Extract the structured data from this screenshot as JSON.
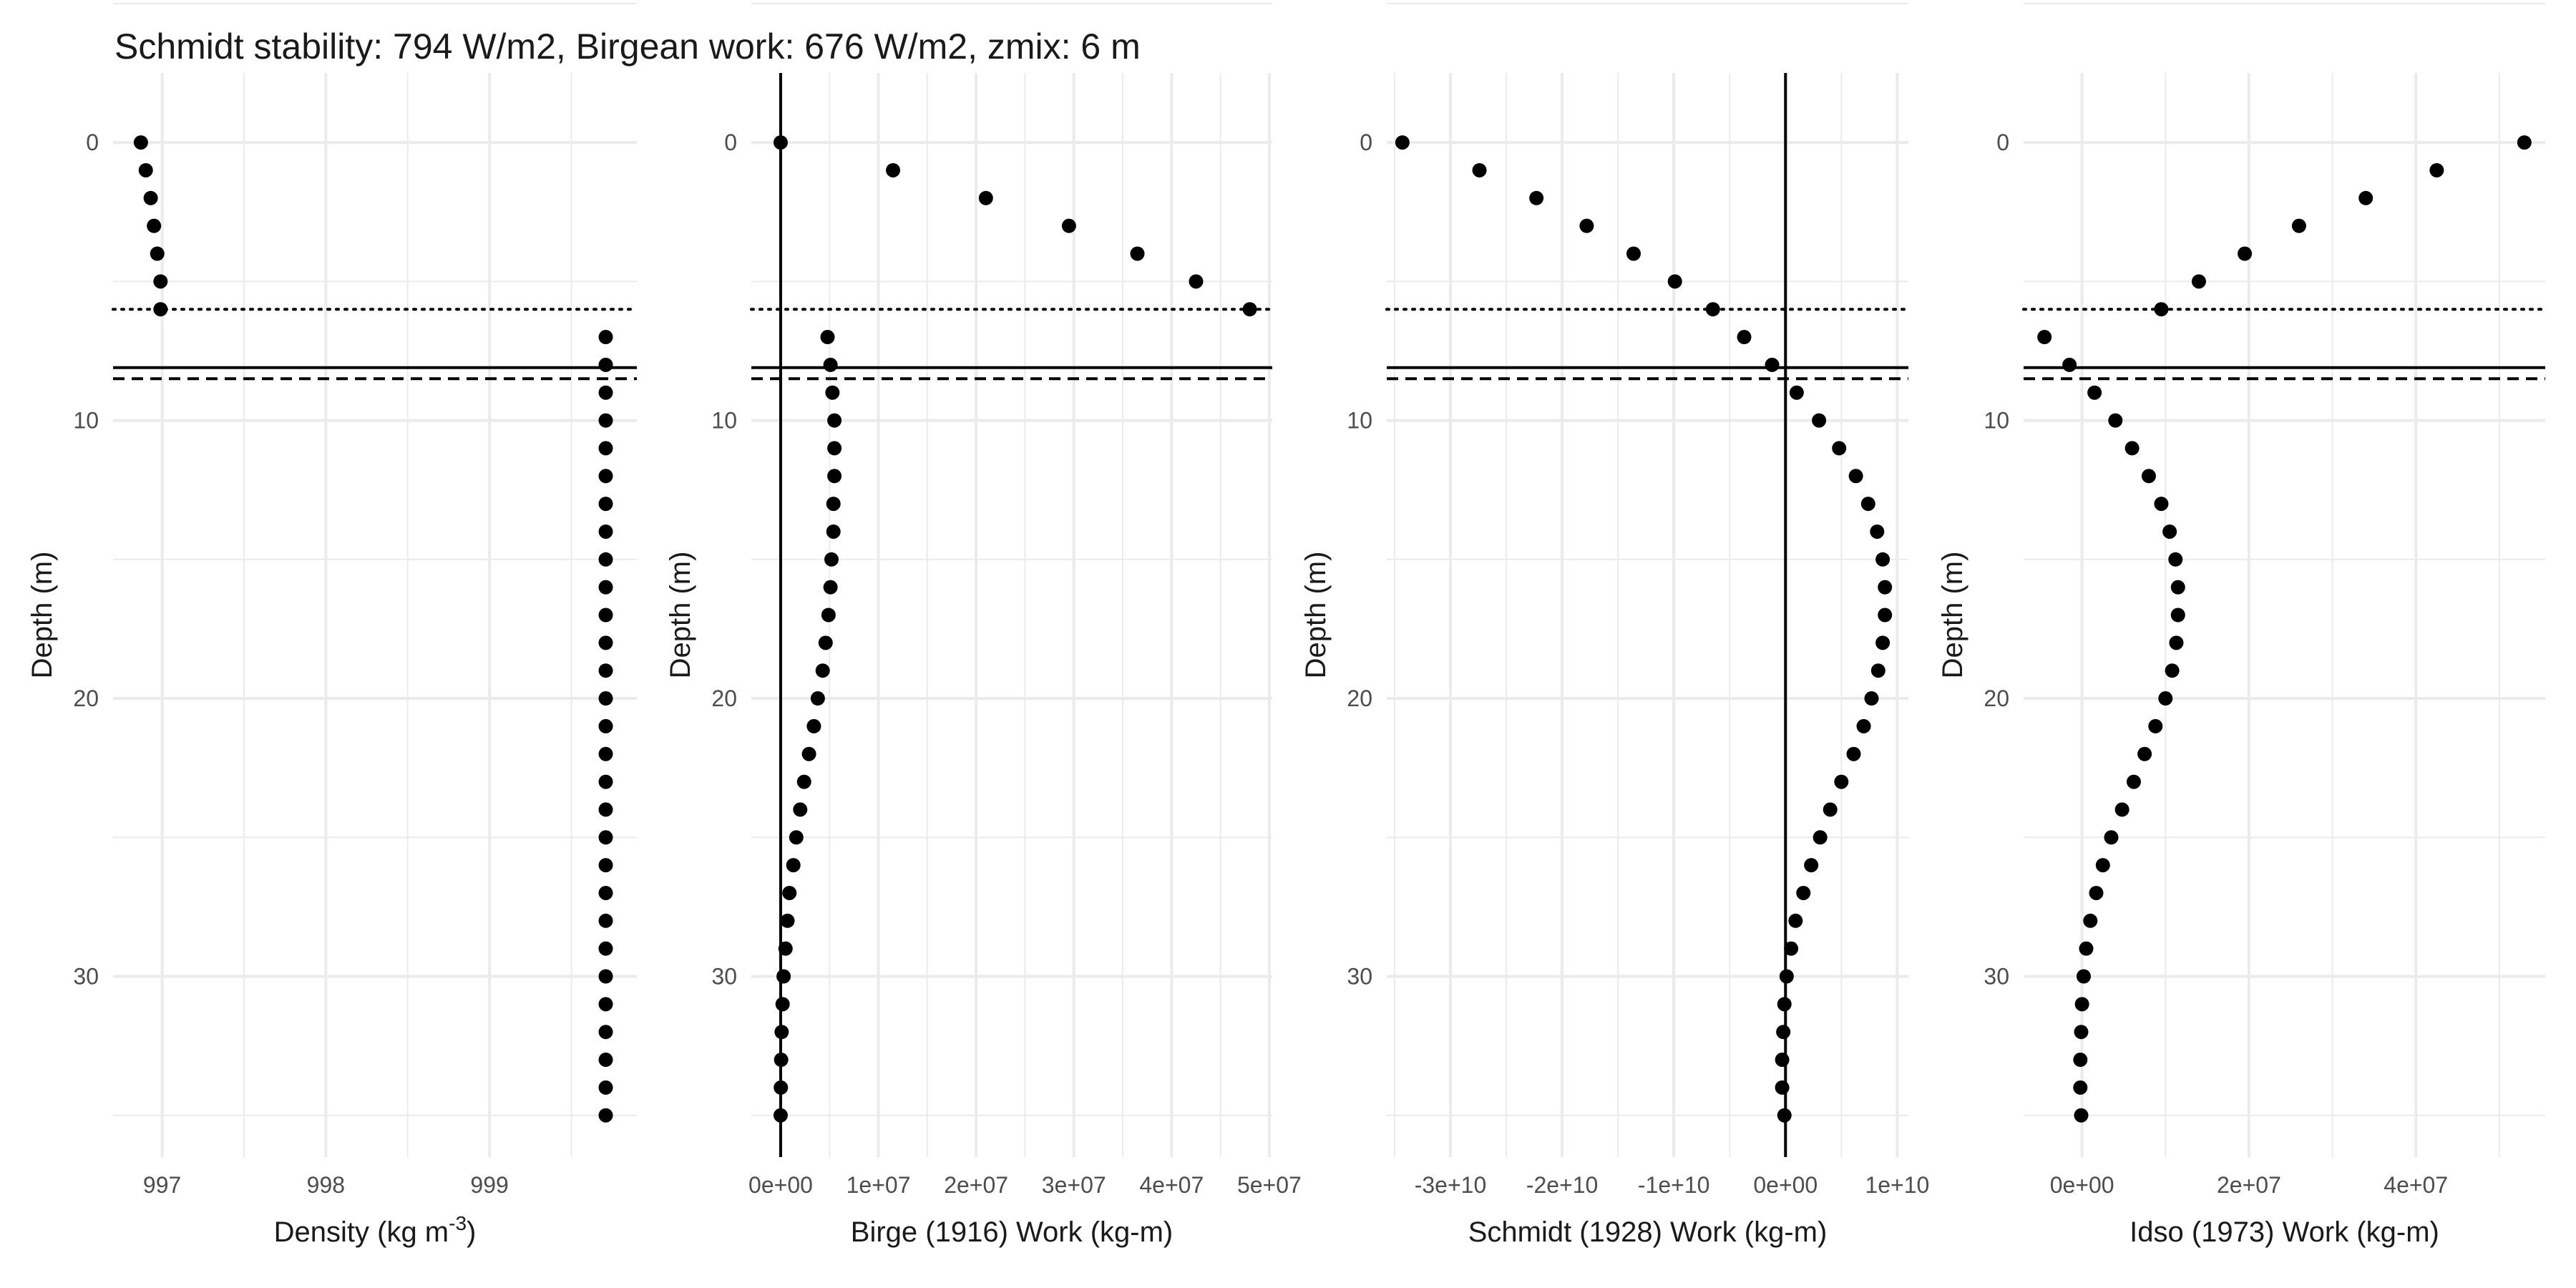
{
  "figure": {
    "title": "Schmidt stability: 794 W/m2, Birgean work: 676 W/m2, zmix: 6 m"
  },
  "colors": {
    "points": "#000000",
    "grid": "#ebebeb",
    "reference_lines": "#000000"
  },
  "chart_data": [
    {
      "type": "scatter",
      "panel": "density",
      "title": "",
      "xlabel_main": "Density (kg m",
      "xlabel_sup": "-3",
      "xlabel_end": ")",
      "ylabel": "Depth (m)",
      "xlim": [
        996.7,
        999.9
      ],
      "ylim": [
        36.5,
        -2.5
      ],
      "xticks": [
        997,
        998,
        999
      ],
      "xtick_labels": [
        "997",
        "998",
        "999"
      ],
      "yticks": [
        0,
        10,
        20,
        30
      ],
      "ytick_labels": [
        "0",
        "10",
        "20",
        "30"
      ],
      "grid": true,
      "zero_line": false,
      "hlines": [
        {
          "y": 6,
          "style": "dotted"
        },
        {
          "y": 8.1,
          "style": "solid"
        },
        {
          "y": 8.5,
          "style": "dashed"
        }
      ],
      "x": [
        996.87,
        996.9,
        996.93,
        996.95,
        996.97,
        996.99,
        996.99,
        999.71,
        999.71,
        999.71,
        999.71,
        999.71,
        999.71,
        999.71,
        999.71,
        999.71,
        999.71,
        999.71,
        999.71,
        999.71,
        999.71,
        999.71,
        999.71,
        999.71,
        999.71,
        999.71,
        999.71,
        999.71,
        999.71,
        999.71,
        999.71,
        999.71,
        999.71,
        999.71,
        999.71,
        999.71
      ],
      "y": [
        0,
        1,
        2,
        3,
        4,
        5,
        6,
        7,
        8,
        9,
        10,
        11,
        12,
        13,
        14,
        15,
        16,
        17,
        18,
        19,
        20,
        21,
        22,
        23,
        24,
        25,
        26,
        27,
        28,
        29,
        30,
        31,
        32,
        33,
        34,
        35
      ]
    },
    {
      "type": "scatter",
      "panel": "birge",
      "title": "",
      "xlabel": "Birge (1916) Work (kg-m)",
      "ylabel": "Depth (m)",
      "xlim": [
        -3000000,
        50300000
      ],
      "ylim": [
        36.5,
        -2.5
      ],
      "xticks": [
        0,
        10000000,
        20000000,
        30000000,
        40000000,
        50000000
      ],
      "xtick_labels": [
        "0e+00",
        "1e+07",
        "2e+07",
        "3e+07",
        "4e+07",
        "5e+07"
      ],
      "yticks": [
        0,
        10,
        20,
        30
      ],
      "ytick_labels": [
        "0",
        "10",
        "20",
        "30"
      ],
      "grid": true,
      "zero_line": true,
      "hlines": [
        {
          "y": 6,
          "style": "dotted"
        },
        {
          "y": 8.1,
          "style": "solid"
        },
        {
          "y": 8.5,
          "style": "dashed"
        }
      ],
      "x": [
        0,
        11500000,
        21000000,
        29500000,
        36500000,
        42500000,
        48000000,
        4800000,
        5100000,
        5300000,
        5500000,
        5500000,
        5500000,
        5400000,
        5400000,
        5200000,
        5100000,
        4900000,
        4600000,
        4300000,
        3800000,
        3400000,
        2900000,
        2400000,
        2000000,
        1600000,
        1300000,
        900000,
        700000,
        500000,
        300000,
        200000,
        100000,
        50000,
        20000,
        0
      ],
      "y": [
        0,
        1,
        2,
        3,
        4,
        5,
        6,
        7,
        8,
        9,
        10,
        11,
        12,
        13,
        14,
        15,
        16,
        17,
        18,
        19,
        20,
        21,
        22,
        23,
        24,
        25,
        26,
        27,
        28,
        29,
        30,
        31,
        32,
        33,
        34,
        35
      ]
    },
    {
      "type": "scatter",
      "panel": "schmidt",
      "title": "",
      "xlabel": "Schmidt (1928) Work (kg-m)",
      "ylabel": "Depth (m)",
      "xlim": [
        -35700000000,
        11000000000
      ],
      "ylim": [
        36.5,
        -2.5
      ],
      "xticks": [
        -30000000000,
        -20000000000,
        -10000000000,
        0,
        10000000000
      ],
      "xtick_labels": [
        "-3e+10",
        "-2e+10",
        "-1e+10",
        "0e+00",
        "1e+10"
      ],
      "yticks": [
        0,
        10,
        20,
        30
      ],
      "ytick_labels": [
        "0",
        "10",
        "20",
        "30"
      ],
      "grid": true,
      "zero_line": true,
      "hlines": [
        {
          "y": 6,
          "style": "dotted"
        },
        {
          "y": 8.1,
          "style": "solid"
        },
        {
          "y": 8.5,
          "style": "dashed"
        }
      ],
      "x": [
        -34300000000,
        -27400000000,
        -22300000000,
        -17800000000,
        -13600000000,
        -9900000000,
        -6500000000,
        -3700000000,
        -1200000000,
        1000000000,
        3000000000,
        4800000000,
        6300000000,
        7400000000,
        8200000000,
        8700000000,
        8900000000,
        8900000000,
        8700000000,
        8300000000,
        7700000000,
        7000000000,
        6100000000,
        5000000000,
        4000000000,
        3100000000,
        2300000000,
        1600000000,
        900000000,
        500000000,
        100000000,
        -100000000,
        -200000000,
        -300000000,
        -300000000,
        -100000000
      ],
      "y": [
        0,
        1,
        2,
        3,
        4,
        5,
        6,
        7,
        8,
        9,
        10,
        11,
        12,
        13,
        14,
        15,
        16,
        17,
        18,
        19,
        20,
        21,
        22,
        23,
        24,
        25,
        26,
        27,
        28,
        29,
        30,
        31,
        32,
        33,
        34,
        35
      ]
    },
    {
      "type": "scatter",
      "panel": "idso",
      "title": "",
      "xlabel": "Idso (1973) Work (kg-m)",
      "ylabel": "Depth (m)",
      "xlim": [
        -7000000,
        55500000
      ],
      "ylim": [
        36.5,
        -2.5
      ],
      "xticks": [
        0,
        20000000,
        40000000
      ],
      "xtick_labels": [
        "0e+00",
        "2e+07",
        "4e+07"
      ],
      "yticks": [
        0,
        10,
        20,
        30
      ],
      "ytick_labels": [
        "0",
        "10",
        "20",
        "30"
      ],
      "grid": true,
      "zero_line": false,
      "hlines": [
        {
          "y": 6,
          "style": "dotted"
        },
        {
          "y": 8.1,
          "style": "solid"
        },
        {
          "y": 8.5,
          "style": "dashed"
        }
      ],
      "x": [
        53000000,
        42500000,
        34000000,
        26000000,
        19500000,
        14000000,
        9500000,
        -4500000,
        -1500000,
        1500000,
        4000000,
        6000000,
        8000000,
        9500000,
        10500000,
        11200000,
        11500000,
        11500000,
        11300000,
        10800000,
        10000000,
        8800000,
        7500000,
        6200000,
        4800000,
        3500000,
        2500000,
        1700000,
        1000000,
        500000,
        200000,
        0,
        -100000,
        -200000,
        -200000,
        -100000
      ],
      "y": [
        0,
        1,
        2,
        3,
        4,
        5,
        6,
        7,
        8,
        9,
        10,
        11,
        12,
        13,
        14,
        15,
        16,
        17,
        18,
        19,
        20,
        21,
        22,
        23,
        24,
        25,
        26,
        27,
        28,
        29,
        30,
        31,
        32,
        33,
        34,
        35
      ]
    }
  ]
}
